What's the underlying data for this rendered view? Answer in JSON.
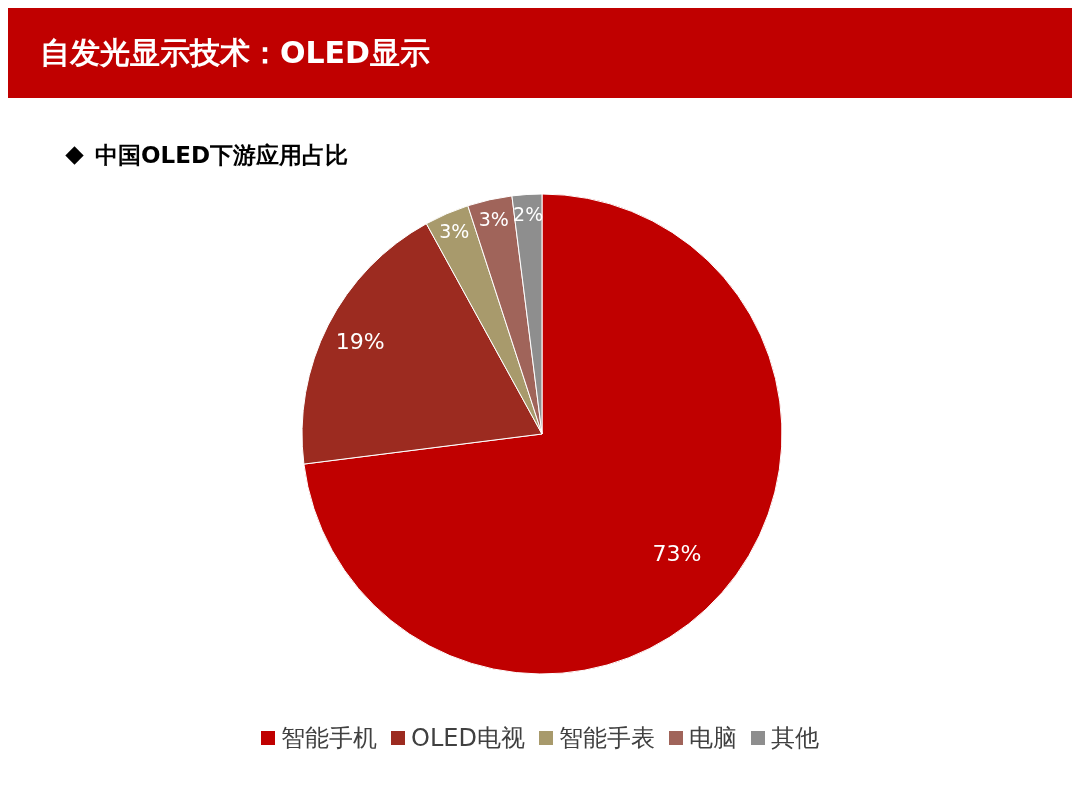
{
  "chart_data": {
    "type": "pie",
    "title": "自发光显示技术：OLED显示",
    "subtitle": "中国OLED下游应用占比",
    "categories": [
      "智能手机",
      "OLED电视",
      "智能手表",
      "电脑",
      "其他"
    ],
    "values": [
      73,
      19,
      3,
      3,
      2
    ],
    "value_labels": [
      "73%",
      "19%",
      "3%",
      "3%",
      "2%"
    ],
    "colors": [
      "#c00000",
      "#9c2b20",
      "#a89a6c",
      "#a0645a",
      "#8e8e8e"
    ],
    "legend": "bottom"
  }
}
